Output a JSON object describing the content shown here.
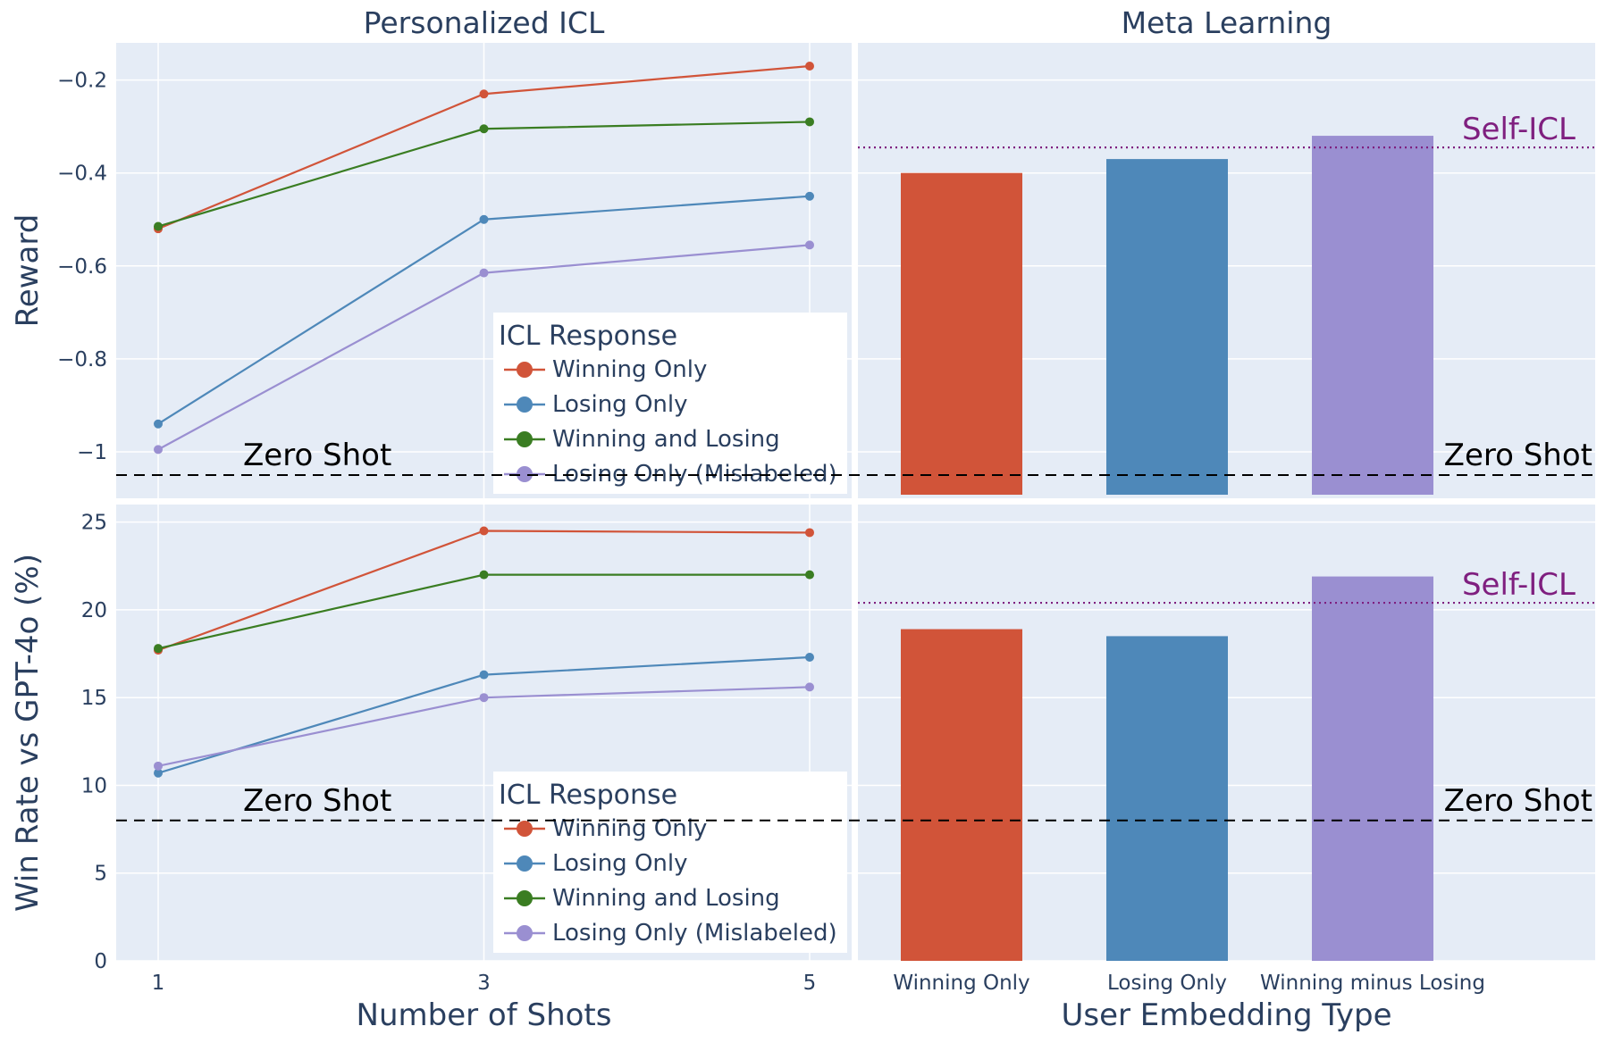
{
  "colors": {
    "panel_bg": "#e5ecf6",
    "grid": "#ffffff",
    "axis_text": "#2a3f5f",
    "zero_shot_line": "#000000",
    "self_icl": "#7f1f7f",
    "winning_only": "#d15439",
    "losing_only": "#4e88b9",
    "winning_and_losing": "#3a7d22",
    "losing_only_mislabeled": "#9a8fd1"
  },
  "chart_data": [
    {
      "type": "line",
      "panel": "top-left",
      "title": "Personalized ICL",
      "xlabel": "",
      "ylabel": "Reward",
      "x": [
        1,
        3,
        5
      ],
      "x_ticks": [
        "1",
        "3",
        "5"
      ],
      "ylim": [
        -1.1,
        -0.12
      ],
      "y_ticks": [
        "−1",
        "−0.8",
        "−0.6",
        "−0.4",
        "−0.2"
      ],
      "y_tick_values": [
        -1,
        -0.8,
        -0.6,
        -0.4,
        -0.2
      ],
      "legend": {
        "title": "ICL Response",
        "placement": "bottom-right"
      },
      "series": [
        {
          "name": "Winning Only",
          "color_key": "winning_only",
          "values": [
            -0.52,
            -0.23,
            -0.17
          ]
        },
        {
          "name": "Losing Only",
          "color_key": "losing_only",
          "values": [
            -0.94,
            -0.5,
            -0.45
          ]
        },
        {
          "name": "Winning and Losing",
          "color_key": "winning_and_losing",
          "values": [
            -0.515,
            -0.305,
            -0.29
          ]
        },
        {
          "name": "Losing Only (Mislabeled)",
          "color_key": "losing_only_mislabeled",
          "values": [
            -0.995,
            -0.615,
            -0.555
          ]
        }
      ],
      "reference_lines": [
        {
          "label": "Zero Shot",
          "y": -1.05,
          "style": "dashed"
        }
      ],
      "grid": true
    },
    {
      "type": "bar",
      "panel": "top-right",
      "title": "Meta Learning",
      "xlabel": "",
      "ylabel": "",
      "categories": [
        "Winning Only",
        "Losing Only",
        "Winning minus Losing"
      ],
      "values": [
        -0.4,
        -0.37,
        -0.32
      ],
      "bar_color_keys": [
        "winning_only",
        "losing_only",
        "losing_only_mislabeled"
      ],
      "ylim": [
        -1.1,
        -0.12
      ],
      "reference_lines": [
        {
          "label": "Zero Shot",
          "y": -1.05,
          "style": "dashed"
        },
        {
          "label": "Self-ICL",
          "y": -0.345,
          "style": "dotted"
        }
      ],
      "grid": true
    },
    {
      "type": "line",
      "panel": "bottom-left",
      "title": "",
      "xlabel": "Number of Shots",
      "ylabel": "Win Rate vs GPT-4o (%)",
      "x": [
        1,
        3,
        5
      ],
      "x_ticks": [
        "1",
        "3",
        "5"
      ],
      "ylim": [
        0,
        26
      ],
      "y_ticks": [
        "0",
        "5",
        "10",
        "15",
        "20",
        "25"
      ],
      "y_tick_values": [
        0,
        5,
        10,
        15,
        20,
        25
      ],
      "legend": {
        "title": "ICL Response",
        "placement": "bottom-right"
      },
      "series": [
        {
          "name": "Winning Only",
          "color_key": "winning_only",
          "values": [
            17.7,
            24.5,
            24.4
          ]
        },
        {
          "name": "Losing Only",
          "color_key": "losing_only",
          "values": [
            10.7,
            16.3,
            17.3
          ]
        },
        {
          "name": "Winning and Losing",
          "color_key": "winning_and_losing",
          "values": [
            17.8,
            22.0,
            22.0
          ]
        },
        {
          "name": "Losing Only (Mislabeled)",
          "color_key": "losing_only_mislabeled",
          "values": [
            11.1,
            15.0,
            15.6
          ]
        }
      ],
      "reference_lines": [
        {
          "label": "Zero Shot",
          "y": 8.0,
          "style": "dashed"
        }
      ],
      "grid": true
    },
    {
      "type": "bar",
      "panel": "bottom-right",
      "title": "",
      "xlabel": "User Embedding Type",
      "ylabel": "",
      "categories": [
        "Winning Only",
        "Losing Only",
        "Winning minus Losing"
      ],
      "values": [
        18.9,
        18.5,
        21.9
      ],
      "bar_color_keys": [
        "winning_only",
        "losing_only",
        "losing_only_mislabeled"
      ],
      "ylim": [
        0,
        26
      ],
      "reference_lines": [
        {
          "label": "Zero Shot",
          "y": 8.0,
          "style": "dashed"
        },
        {
          "label": "Self-ICL",
          "y": 20.4,
          "style": "dotted"
        }
      ],
      "grid": true
    }
  ]
}
